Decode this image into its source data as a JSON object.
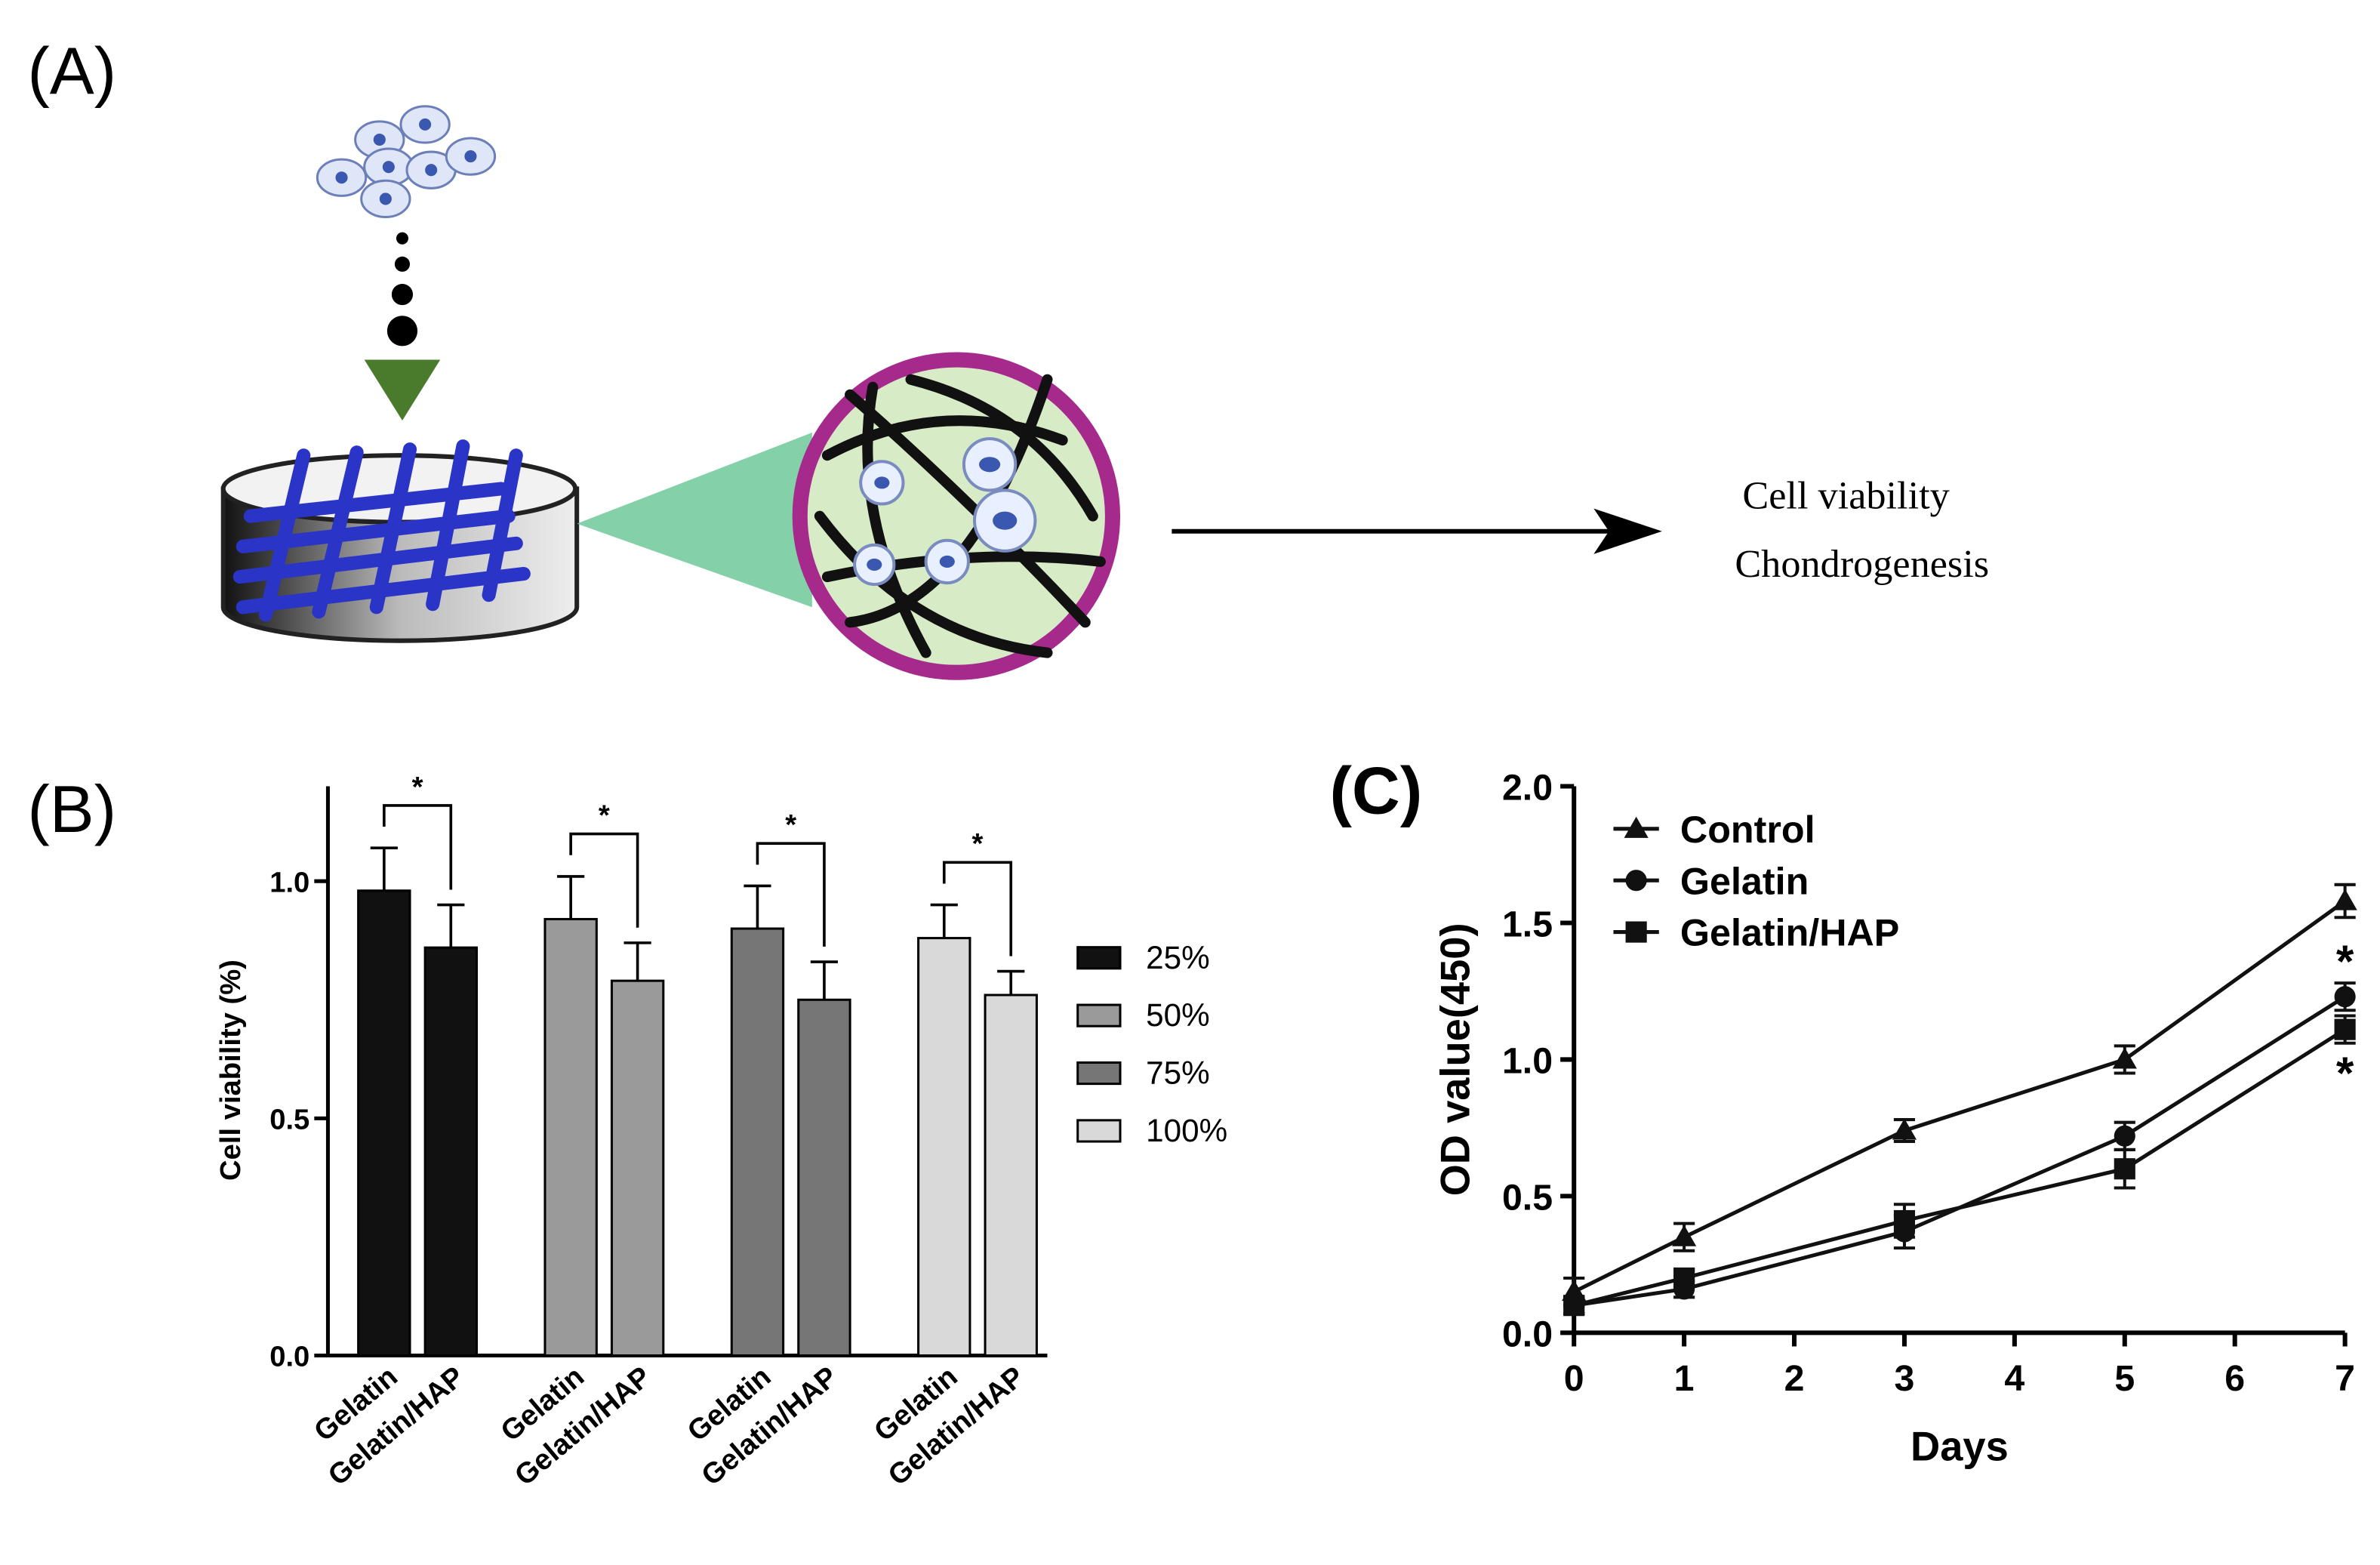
{
  "panel_a": {
    "label": "(A)",
    "outputs": [
      "Cell viability",
      "Chondrogenesis"
    ]
  },
  "chart_data": [
    {
      "type": "bar",
      "panel_label": "(B)",
      "ylabel": "Cell viability (%)",
      "categories": [
        "Gelatin",
        "Gelatin/HAP"
      ],
      "series": [
        {
          "name": "25%",
          "color": "#111111",
          "values": [
            0.98,
            0.86
          ],
          "errors": [
            0.09,
            0.09
          ]
        },
        {
          "name": "50%",
          "color": "#9a9a9a",
          "values": [
            0.92,
            0.79
          ],
          "errors": [
            0.09,
            0.08
          ]
        },
        {
          "name": "75%",
          "color": "#767676",
          "values": [
            0.9,
            0.75
          ],
          "errors": [
            0.09,
            0.08
          ]
        },
        {
          "name": "100%",
          "color": "#d9d9d9",
          "values": [
            0.88,
            0.76
          ],
          "errors": [
            0.07,
            0.05
          ]
        }
      ],
      "annotations": [
        "*",
        "*",
        "*",
        "*"
      ],
      "ylim": [
        0,
        1.2
      ],
      "yticks": [
        {
          "value": 0,
          "label": "0.0"
        },
        {
          "value": 0.5,
          "label": "0.5"
        },
        {
          "value": 1,
          "label": "1.0"
        }
      ],
      "legend": "right"
    },
    {
      "type": "line",
      "panel_label": "(C)",
      "xlabel": "Days",
      "ylabel": "OD value(450)",
      "x": [
        0,
        1,
        3,
        5,
        7
      ],
      "series": [
        {
          "name": "Control",
          "color": "#111111",
          "marker": "triangle",
          "values": [
            0.15,
            0.35,
            0.74,
            1.0,
            1.58
          ],
          "errors": [
            0.05,
            0.05,
            0.04,
            0.05,
            0.06
          ]
        },
        {
          "name": "Gelatin",
          "color": "#111111",
          "marker": "circle",
          "values": [
            0.1,
            0.16,
            0.37,
            0.72,
            1.23
          ],
          "errors": [
            0.03,
            0.03,
            0.06,
            0.05,
            0.05
          ],
          "annotation": "*"
        },
        {
          "name": "Gelatin/HAP",
          "color": "#111111",
          "marker": "square",
          "values": [
            0.1,
            0.2,
            0.41,
            0.6,
            1.11
          ],
          "errors": [
            0.03,
            0.03,
            0.06,
            0.07,
            0.05
          ],
          "annotation": "*"
        }
      ],
      "xlim": [
        0,
        7
      ],
      "xticks": [
        0,
        1,
        2,
        3,
        4,
        5,
        6,
        7
      ],
      "ylim": [
        0,
        2
      ],
      "yticks": [
        {
          "value": 0,
          "label": "0.0"
        },
        {
          "value": 0.5,
          "label": "0.5"
        },
        {
          "value": 1,
          "label": "1.0"
        },
        {
          "value": 1.5,
          "label": "1.5"
        },
        {
          "value": 2,
          "label": "2.0"
        }
      ],
      "legend": "upper left"
    }
  ]
}
